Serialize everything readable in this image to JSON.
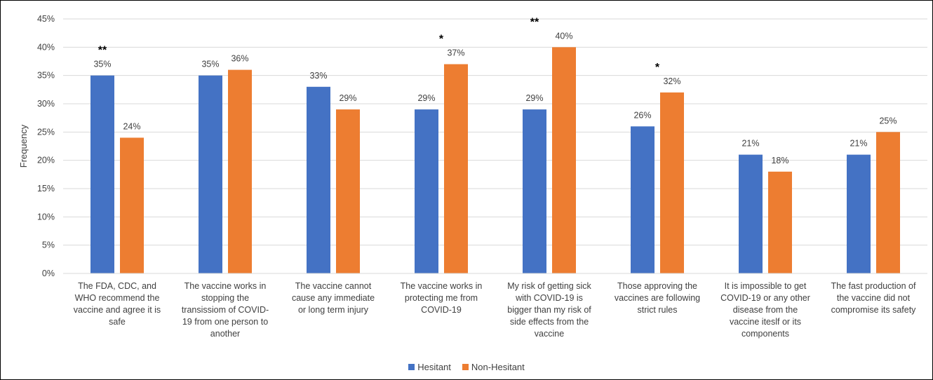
{
  "chart_data": {
    "type": "bar",
    "ylabel": "Frequency",
    "ylim": [
      0,
      45
    ],
    "y_ticks": [
      "0%",
      "5%",
      "10%",
      "15%",
      "20%",
      "25%",
      "30%",
      "35%",
      "40%",
      "45%"
    ],
    "grid": true,
    "legend_position": "bottom",
    "categories": [
      "The FDA, CDC, and WHO recommend the vaccine and agree it is safe",
      "The vaccine works in stopping the transissiom of COVID-19 from one person to another",
      "The vaccine cannot cause any immediate or long term injury",
      "The vaccine works in protecting me from COVID-19",
      "My risk of getting sick with COVID-19 is bigger than my risk of side effects from the vaccine",
      "Those approving the vaccines are following strict rules",
      "It is impossible to get COVID-19 or any other disease from the vaccine iteslf or its components",
      "The fast production of the vaccine did not compromise its safety"
    ],
    "category_lines": [
      [
        "The FDA, CDC, and",
        "WHO recommend the",
        "vaccine and agree it is",
        "safe"
      ],
      [
        "The vaccine works in",
        "stopping the",
        "transissiom of COVID-",
        "19 from one person to",
        "another"
      ],
      [
        "The vaccine cannot",
        "cause any immediate",
        "or long term injury"
      ],
      [
        "The vaccine works in",
        "protecting me from",
        "COVID-19"
      ],
      [
        "My risk of getting sick",
        "with COVID-19 is",
        "bigger than my risk of",
        "side effects from the",
        "vaccine"
      ],
      [
        "Those approving the",
        "vaccines are following",
        "strict rules"
      ],
      [
        "It is impossible to get",
        "COVID-19 or any other",
        "disease from the",
        "vaccine iteslf or its",
        "components"
      ],
      [
        "The fast production of",
        "the vaccine did not",
        "compromise its safety"
      ]
    ],
    "series": [
      {
        "name": "Hesitant",
        "color": "#4472C4",
        "values": [
          35,
          35,
          33,
          29,
          29,
          26,
          21,
          21
        ],
        "labels": [
          "35%",
          "35%",
          "33%",
          "29%",
          "29%",
          "26%",
          "21%",
          "21%"
        ]
      },
      {
        "name": "Non-Hesitant",
        "color": "#ED7D31",
        "values": [
          24,
          36,
          29,
          37,
          40,
          32,
          18,
          25
        ],
        "labels": [
          "24%",
          "36%",
          "29%",
          "37%",
          "40%",
          "32%",
          "18%",
          "25%"
        ]
      }
    ],
    "significance": [
      "**",
      "",
      "",
      "*",
      "**",
      "*",
      "",
      ""
    ]
  }
}
